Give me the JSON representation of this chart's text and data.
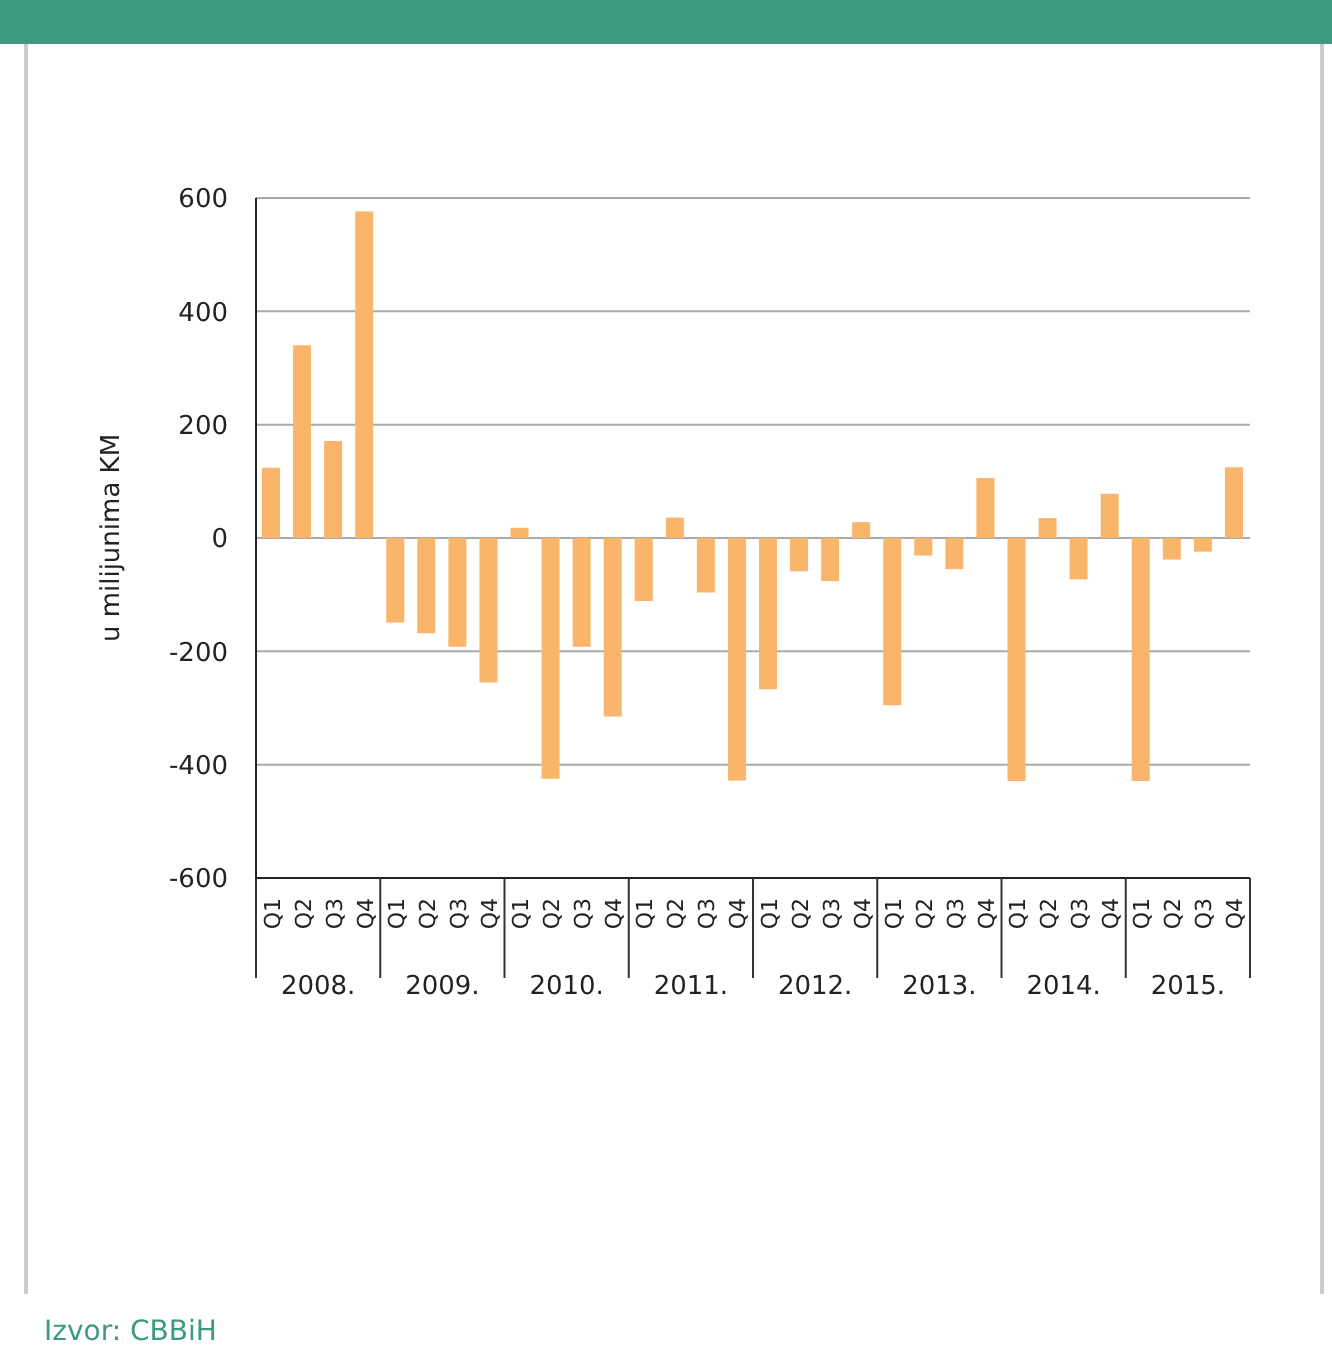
{
  "chart_data": {
    "type": "bar",
    "ylabel": "u milijunima KM",
    "categories": [
      "Q1",
      "Q2",
      "Q3",
      "Q4",
      "Q1",
      "Q2",
      "Q3",
      "Q4",
      "Q1",
      "Q2",
      "Q3",
      "Q4",
      "Q1",
      "Q2",
      "Q3",
      "Q4",
      "Q1",
      "Q2",
      "Q3",
      "Q4",
      "Q1",
      "Q2",
      "Q3",
      "Q4",
      "Q1",
      "Q2",
      "Q3",
      "Q4",
      "Q1",
      "Q2",
      "Q3",
      "Q4"
    ],
    "values": [
      124,
      340,
      171,
      576,
      -149,
      -168,
      -192,
      -255,
      18,
      -425,
      -192,
      -315,
      -111,
      36,
      -96,
      -428,
      -267,
      -59,
      -76,
      28,
      -295,
      -31,
      -55,
      106,
      -429,
      35,
      -73,
      78,
      -429,
      -38,
      -24,
      125
    ],
    "color": "#f9b56a",
    "ylim": [
      -600,
      600
    ],
    "yticks": [
      -600,
      -400,
      -200,
      0,
      200,
      400,
      600
    ],
    "grid": "y",
    "annotations": [
      "2008.",
      "2009.",
      "2010.",
      "2011.",
      "2012.",
      "2013.",
      "2014.",
      "2015.",
      "Izvor: CBBiH"
    ]
  }
}
